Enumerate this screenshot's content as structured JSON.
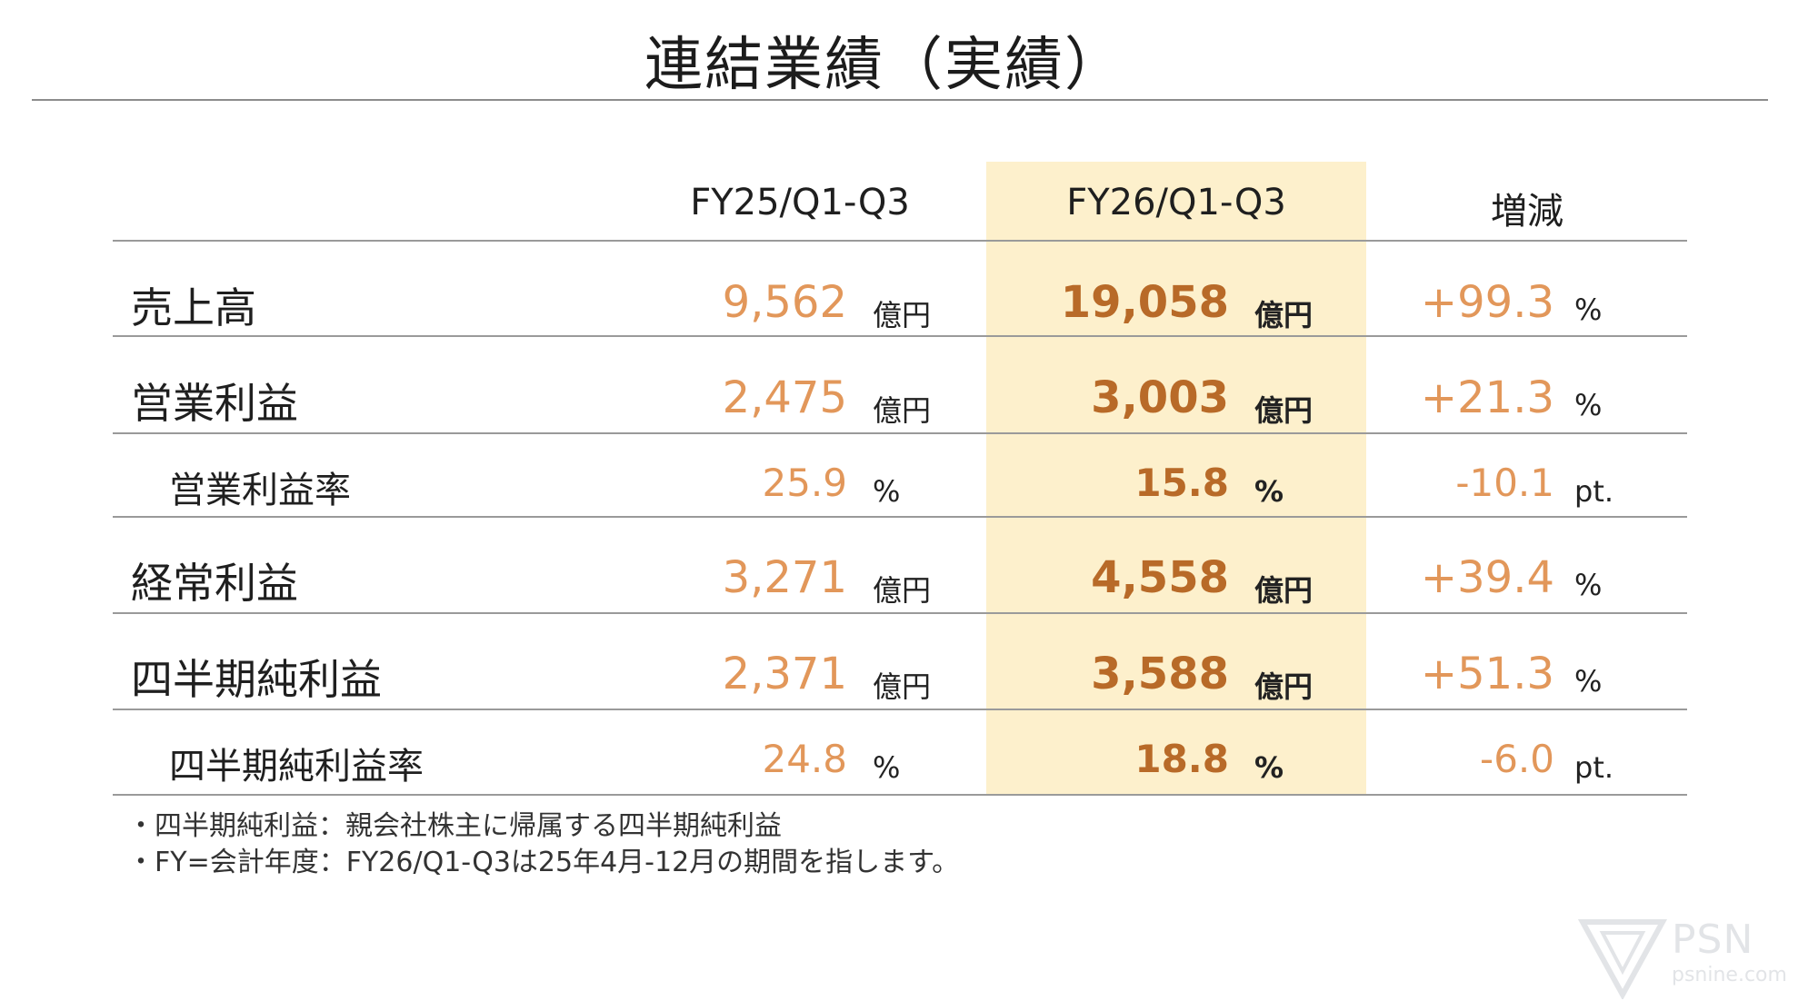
{
  "title": "連結業績（実績）",
  "columns": {
    "prev": "FY25/Q1-Q3",
    "curr": "FY26/Q1-Q3",
    "change": "増減"
  },
  "rows": [
    {
      "label": "売上高",
      "prev": "9,562",
      "prev_unit": "億円",
      "curr": "19,058",
      "curr_unit": "億円",
      "change": "+99.3",
      "change_unit": "%"
    },
    {
      "label": "営業利益",
      "prev": "2,475",
      "prev_unit": "億円",
      "curr": "3,003",
      "curr_unit": "億円",
      "change": "+21.3",
      "change_unit": "%"
    },
    {
      "label": "営業利益率",
      "prev": "25.9",
      "prev_unit": "%",
      "curr": "15.8",
      "curr_unit": "%",
      "change": "-10.1",
      "change_unit": "pt."
    },
    {
      "label": "経常利益",
      "prev": "3,271",
      "prev_unit": "億円",
      "curr": "4,558",
      "curr_unit": "億円",
      "change": "+39.4",
      "change_unit": "%"
    },
    {
      "label": "四半期純利益",
      "prev": "2,371",
      "prev_unit": "億円",
      "curr": "3,588",
      "curr_unit": "億円",
      "change": "+51.3",
      "change_unit": "%"
    },
    {
      "label": "四半期純利益率",
      "prev": "24.8",
      "prev_unit": "%",
      "curr": "18.8",
      "curr_unit": "%",
      "change": "-6.0",
      "change_unit": "pt."
    }
  ],
  "notes": [
    "・四半期純利益：親会社株主に帰属する四半期純利益",
    "・FY=会計年度：FY26/Q1-Q3は25年4月-12月の期間を指します。"
  ],
  "watermark": {
    "brand": "PSN",
    "sub": "psnine.com"
  },
  "colors": {
    "highlight": "#fdf0cc",
    "value": "#e2975a",
    "value_bold": "#b86a28"
  }
}
